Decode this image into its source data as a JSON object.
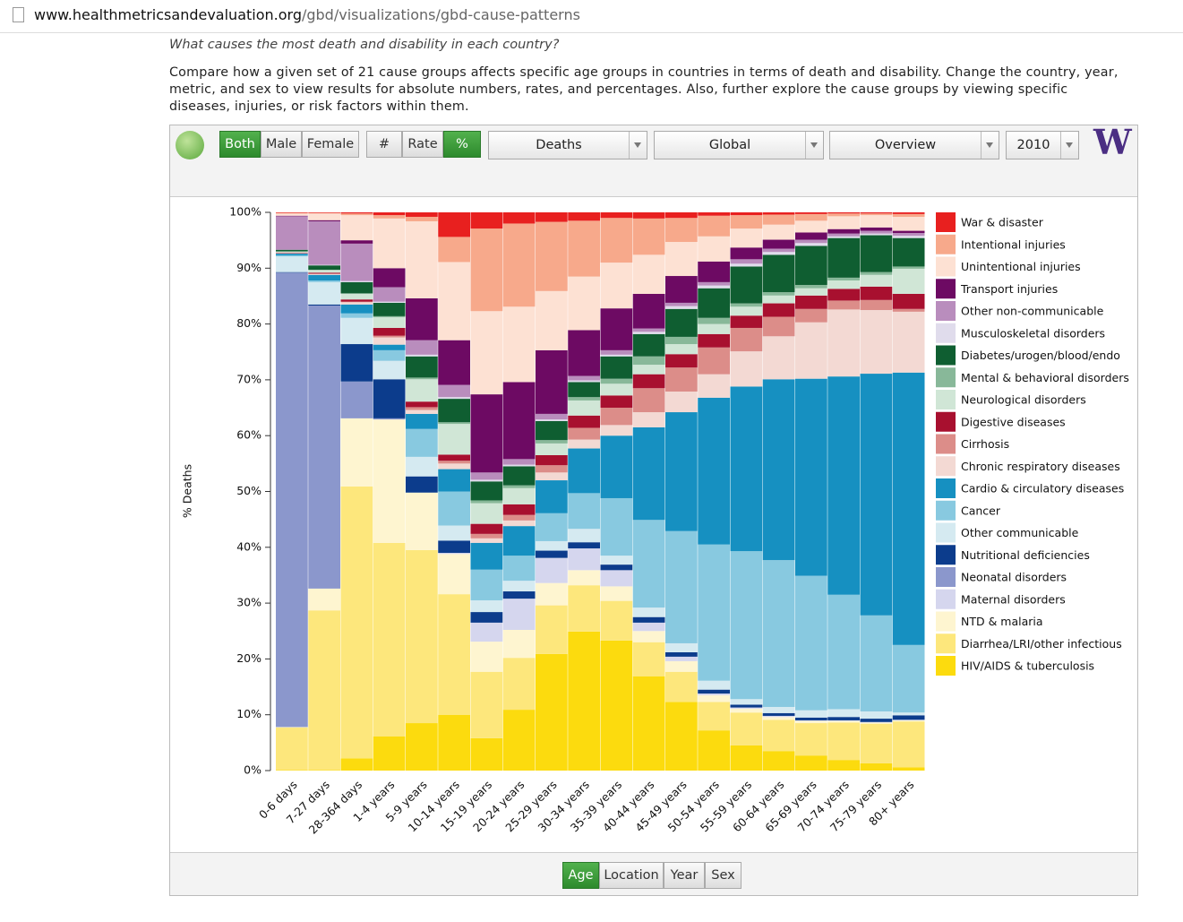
{
  "browser": {
    "url_host": "www.healthmetricsandevaluation.org",
    "url_path": "/gbd/visualizations/gbd-cause-patterns"
  },
  "intro": {
    "question": "What causes the most death and disability in each country?",
    "description": "Compare how a given set of 21 cause groups affects specific age groups in countries in terms of death and disability. Change the country, year, metric, and sex to view results for absolute numbers, rates, and percentages. Also, further explore the cause groups by viewing specific diseases, injuries, or risk factors within them."
  },
  "controls": {
    "sex": [
      {
        "label": "Both",
        "selected": true
      },
      {
        "label": "Male",
        "selected": false
      },
      {
        "label": "Female",
        "selected": false
      }
    ],
    "metric": [
      {
        "label": "#",
        "selected": false
      },
      {
        "label": "Rate",
        "selected": false
      },
      {
        "label": "%",
        "selected": true
      }
    ],
    "dropdowns": [
      "Deaths",
      "Global",
      "Overview",
      "2010"
    ],
    "logo": "W"
  },
  "view_tabs": [
    {
      "label": "Age",
      "selected": true
    },
    {
      "label": "Location",
      "selected": false
    },
    {
      "label": "Year",
      "selected": false
    },
    {
      "label": "Sex",
      "selected": false
    }
  ],
  "chart_data": {
    "type": "bar",
    "stacked": true,
    "y_label": "% Deaths",
    "ylim": [
      0,
      100
    ],
    "yticks": [
      {
        "value": 0,
        "label": "0%"
      },
      {
        "value": 10,
        "label": "10%"
      },
      {
        "value": 20,
        "label": "20%"
      },
      {
        "value": 30,
        "label": "30%"
      },
      {
        "value": 40,
        "label": "40%"
      },
      {
        "value": 50,
        "label": "50%"
      },
      {
        "value": 60,
        "label": "60%"
      },
      {
        "value": 70,
        "label": "70%"
      },
      {
        "value": 80,
        "label": "80%"
      },
      {
        "value": 90,
        "label": "90%"
      },
      {
        "value": 100,
        "label": "100%"
      }
    ],
    "categories": [
      "0-6 days",
      "7-27 days",
      "28-364 days",
      "1-4 years",
      "5-9 years",
      "10-14 years",
      "15-19 years",
      "20-24 years",
      "25-29 years",
      "30-34 years",
      "35-39 years",
      "40-44 years",
      "45-49 years",
      "50-54 years",
      "55-59 years",
      "60-64 years",
      "65-69 years",
      "70-74 years",
      "75-79 years",
      "80+ years"
    ],
    "series": [
      {
        "name": "HIV/AIDS & tuberculosis",
        "color": "#fcdb0e",
        "values": [
          0.1,
          0.1,
          2.2,
          6.1,
          8.5,
          10.0,
          5.8,
          10.9,
          20.9,
          24.9,
          23.3,
          16.9,
          12.3,
          7.2,
          4.5,
          3.5,
          2.7,
          1.9,
          1.3,
          0.6
        ]
      },
      {
        "name": "Diarrhea/LRI/other infectious",
        "color": "#fde77c",
        "values": [
          7.6,
          28.6,
          48.7,
          34.7,
          31.0,
          21.6,
          11.9,
          9.3,
          8.7,
          8.3,
          7.1,
          6.1,
          5.4,
          5.1,
          5.9,
          5.6,
          5.8,
          6.7,
          7.1,
          8.2
        ]
      },
      {
        "name": "NTD & malaria",
        "color": "#fef5d0",
        "values": [
          0.1,
          3.9,
          12.2,
          22.1,
          10.3,
          7.2,
          5.4,
          5.0,
          4.0,
          2.7,
          2.6,
          2.0,
          1.9,
          1.2,
          0.7,
          0.5,
          0.4,
          0.3,
          0.2,
          0.2
        ]
      },
      {
        "name": "Maternal disorders",
        "color": "#d5d6ee",
        "values": [
          0,
          0,
          0,
          0,
          0,
          0.2,
          3.4,
          5.6,
          4.5,
          3.9,
          2.9,
          1.5,
          0.8,
          0.3,
          0.2,
          0.2,
          0.1,
          0.1,
          0.1,
          0.1
        ]
      },
      {
        "name": "Neonatal disorders",
        "color": "#8b97cc",
        "values": [
          81.4,
          50.7,
          6.6,
          0.2,
          0,
          0,
          0,
          0,
          0,
          0,
          0,
          0,
          0,
          0,
          0,
          0,
          0,
          0,
          0,
          0
        ]
      },
      {
        "name": "Nutritional deficiencies",
        "color": "#0c3c8c",
        "values": [
          0.1,
          0.2,
          6.7,
          7.0,
          2.9,
          2.2,
          1.9,
          1.3,
          1.3,
          1.1,
          1.0,
          1.0,
          0.8,
          0.7,
          0.5,
          0.5,
          0.5,
          0.6,
          0.6,
          0.8
        ]
      },
      {
        "name": "Other communicable",
        "color": "#d5eaf1",
        "values": [
          2.8,
          4.0,
          4.7,
          3.3,
          3.5,
          2.7,
          2.1,
          1.9,
          1.7,
          2.4,
          1.6,
          1.7,
          1.6,
          1.6,
          1.0,
          1.1,
          1.3,
          1.4,
          1.3,
          0.5
        ]
      },
      {
        "name": "Cancer",
        "color": "#88c9e0",
        "values": [
          0.2,
          0.3,
          0.8,
          1.9,
          5.0,
          6.1,
          5.5,
          4.5,
          5.0,
          6.4,
          10.3,
          15.7,
          20.1,
          24.4,
          26.5,
          26.3,
          24.1,
          20.5,
          17.2,
          12.1
        ]
      },
      {
        "name": "Cardio & circulatory diseases",
        "color": "#1690c1",
        "values": [
          0.3,
          1.0,
          1.6,
          1.0,
          2.7,
          4.0,
          4.8,
          5.3,
          5.9,
          8.0,
          11.2,
          16.6,
          21.3,
          26.3,
          29.5,
          32.4,
          35.3,
          39.1,
          43.3,
          48.8
        ]
      },
      {
        "name": "Chronic respiratory diseases",
        "color": "#f3d9d3",
        "values": [
          0.1,
          0.2,
          0.4,
          1.3,
          0.7,
          1.0,
          0.8,
          1.0,
          1.4,
          1.6,
          1.9,
          2.7,
          3.7,
          4.2,
          6.3,
          7.7,
          10.1,
          12.0,
          11.4,
          10.9
        ]
      },
      {
        "name": "Cirrhosis",
        "color": "#dc8d89",
        "values": [
          0,
          0,
          0.1,
          0.3,
          0.5,
          0.5,
          0.8,
          1.0,
          1.3,
          2.1,
          3.1,
          4.3,
          4.3,
          4.8,
          4.2,
          3.5,
          2.4,
          1.6,
          1.8,
          0.5
        ]
      },
      {
        "name": "Digestive diseases",
        "color": "#a8102f",
        "values": [
          0.1,
          0.2,
          0.4,
          1.4,
          1.0,
          1.1,
          1.8,
          1.9,
          1.8,
          2.2,
          2.2,
          2.5,
          2.4,
          2.4,
          2.2,
          2.4,
          2.4,
          2.1,
          2.4,
          2.7
        ]
      },
      {
        "name": "Neurological disorders",
        "color": "#d0e6d6",
        "values": [
          0.2,
          0.5,
          1.0,
          1.9,
          4.0,
          5.5,
          3.7,
          2.9,
          2.1,
          2.7,
          2.1,
          1.7,
          1.8,
          1.8,
          1.6,
          1.4,
          1.3,
          1.5,
          2.1,
          4.5
        ]
      },
      {
        "name": "Mental & behavioral disorders",
        "color": "#88b899",
        "values": [
          0,
          0,
          0.1,
          0.2,
          0.3,
          0.3,
          0.5,
          0.5,
          0.6,
          0.6,
          0.9,
          1.5,
          1.3,
          1.1,
          0.6,
          0.6,
          0.6,
          0.5,
          0.5,
          0.4
        ]
      },
      {
        "name": "Diabetes/urogen/blood/endo",
        "color": "#0f5e31",
        "values": [
          0.3,
          0.8,
          2.0,
          2.4,
          3.8,
          4.2,
          3.4,
          3.4,
          3.4,
          2.7,
          4.0,
          4.0,
          5.0,
          5.3,
          6.6,
          6.7,
          7.0,
          7.1,
          6.6,
          5.1
        ]
      },
      {
        "name": "Musculoskeletal disorders",
        "color": "#e0dcec",
        "values": [
          0,
          0.1,
          0.2,
          0.2,
          0.3,
          0.3,
          0.3,
          0.3,
          0.3,
          0.3,
          0.3,
          0.4,
          0.5,
          0.5,
          0.5,
          0.5,
          0.5,
          0.3,
          0.3,
          0.4
        ]
      },
      {
        "name": "Other non-communicable",
        "color": "#b98dbd",
        "values": [
          6.0,
          7.8,
          6.7,
          2.6,
          2.6,
          2.2,
          1.3,
          1.0,
          1.0,
          0.8,
          0.8,
          0.6,
          0.6,
          0.6,
          0.8,
          0.6,
          0.6,
          0.5,
          0.5,
          0.5
        ]
      },
      {
        "name": "Transport injuries",
        "color": "#6d0a63",
        "values": [
          0.1,
          0.2,
          0.6,
          3.4,
          7.5,
          8.0,
          14.0,
          13.8,
          11.4,
          8.2,
          7.5,
          6.2,
          4.8,
          3.7,
          2.1,
          1.6,
          1.3,
          0.8,
          0.6,
          0.4
        ]
      },
      {
        "name": "Unintentional injuries",
        "color": "#fde1d3",
        "values": [
          0.4,
          1.2,
          4.5,
          8.9,
          13.8,
          14.0,
          14.9,
          13.5,
          10.6,
          9.6,
          8.2,
          7.0,
          6.1,
          4.5,
          3.4,
          2.7,
          2.1,
          2.3,
          2.2,
          2.5
        ]
      },
      {
        "name": "Intentional injuries",
        "color": "#f7a98b",
        "values": [
          0.1,
          0.1,
          0.3,
          0.6,
          0.8,
          4.5,
          14.8,
          14.9,
          12.4,
          10.0,
          8.0,
          6.5,
          4.3,
          3.7,
          2.4,
          1.8,
          1.2,
          0.5,
          0.3,
          0.5
        ]
      },
      {
        "name": "War & disaster",
        "color": "#e8201f",
        "values": [
          0.1,
          0.1,
          0.2,
          0.5,
          0.8,
          4.4,
          2.9,
          2.0,
          1.7,
          1.5,
          1.0,
          1.1,
          1.0,
          0.6,
          0.5,
          0.4,
          0.3,
          0.2,
          0.2,
          0.3
        ]
      }
    ]
  }
}
